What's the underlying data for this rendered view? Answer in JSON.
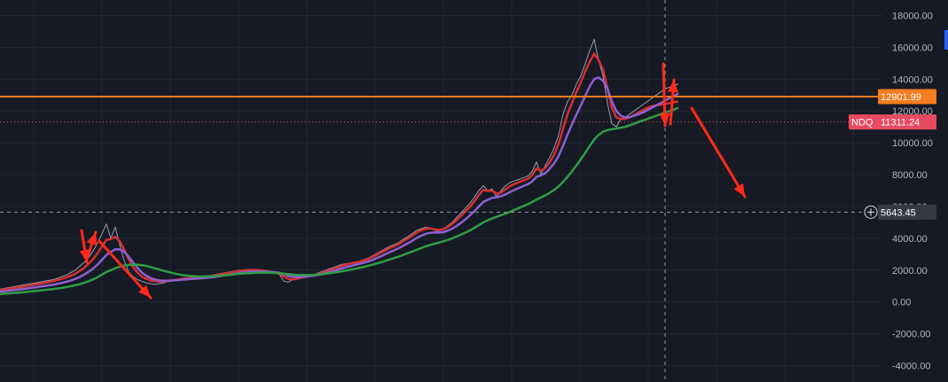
{
  "chart_data": {
    "type": "line",
    "title": "",
    "xlabel": "",
    "ylabel": "",
    "symbol": "NDQ",
    "ylim": [
      -4500,
      18800
    ],
    "x": [
      0,
      5,
      10,
      15,
      20,
      25,
      30,
      35,
      40,
      45,
      50,
      55,
      60,
      65,
      70,
      75,
      80,
      85,
      90,
      95,
      100,
      105,
      110,
      115,
      120,
      125,
      130,
      135,
      140,
      145,
      150,
      155,
      160,
      165,
      170,
      175,
      180,
      185,
      190,
      195,
      200,
      205,
      210,
      215,
      220,
      225,
      230,
      235,
      240,
      245,
      250,
      255,
      260,
      265,
      270,
      275,
      280,
      285,
      290,
      295,
      300,
      305,
      310,
      315,
      320,
      325,
      330,
      335,
      340,
      345,
      350,
      355,
      360,
      365,
      370,
      375,
      380,
      385,
      390,
      395,
      400,
      405,
      410,
      415,
      420,
      425,
      430,
      435,
      440,
      445,
      450,
      455,
      460,
      465,
      470,
      475,
      480,
      485,
      490,
      495,
      500,
      505,
      510,
      515,
      520,
      525,
      530,
      535,
      540,
      545,
      550,
      555,
      560,
      565,
      570,
      575,
      580,
      585,
      590,
      595,
      600,
      605,
      610,
      615,
      620,
      625,
      630,
      635,
      640,
      645,
      650,
      655,
      660,
      665,
      670,
      675,
      680,
      685,
      690,
      695,
      700,
      705,
      710,
      715,
      720,
      725,
      730,
      735,
      740,
      745,
      750,
      755,
      760,
      765
    ],
    "series": [
      {
        "color": "#b2b5be",
        "values": [
          800,
          850,
          900,
          950,
          1000,
          1050,
          1100,
          1150,
          1200,
          1250,
          1300,
          1350,
          1400,
          1500,
          1600,
          1700,
          1850,
          2000,
          2250,
          2500,
          2800,
          3200,
          3700,
          4300,
          4900,
          4000,
          4700,
          3600,
          2600,
          1900,
          1600,
          1400,
          1300,
          1200,
          1150,
          1100,
          1150,
          1200,
          1300,
          1350,
          1400,
          1450,
          1500,
          1500,
          1550,
          1550,
          1600,
          1650,
          1700,
          1750,
          1800,
          1850,
          1900,
          1950,
          2000,
          2000,
          2050,
          2050,
          2000,
          1950,
          1900,
          1850,
          1800,
          1750,
          1300,
          1250,
          1400,
          1500,
          1600,
          1650,
          1700,
          1750,
          1850,
          1950,
          2050,
          2150,
          2250,
          2350,
          2400,
          2450,
          2500,
          2550,
          2650,
          2750,
          2900,
          3050,
          3200,
          3350,
          3500,
          3600,
          3750,
          3950,
          4100,
          4300,
          4500,
          4600,
          4700,
          4650,
          4500,
          4450,
          4600,
          4800,
          5000,
          5300,
          5600,
          5900,
          6200,
          6600,
          7000,
          7300,
          7000,
          7100,
          6600,
          7000,
          7300,
          7500,
          7600,
          7700,
          7800,
          7900,
          8200,
          8800,
          8000,
          8600,
          9100,
          9700,
          10500,
          11800,
          12600,
          13000,
          13700,
          14200,
          15000,
          15800,
          16500,
          15200,
          14200,
          12500,
          11200,
          11000,
          11500,
          11600,
          11800,
          12000,
          12200,
          12400,
          12600,
          12800,
          13000,
          13200,
          13400,
          13500,
          13600,
          13700
        ]
      },
      {
        "color": "#d63031",
        "values": [
          750,
          790,
          830,
          870,
          910,
          950,
          1000,
          1050,
          1100,
          1150,
          1200,
          1250,
          1300,
          1380,
          1460,
          1550,
          1650,
          1780,
          1950,
          2150,
          2400,
          2700,
          3050,
          3500,
          3900,
          3950,
          4100,
          3800,
          3300,
          2700,
          2200,
          1850,
          1600,
          1450,
          1350,
          1300,
          1280,
          1290,
          1320,
          1360,
          1400,
          1440,
          1480,
          1500,
          1520,
          1540,
          1570,
          1610,
          1650,
          1700,
          1750,
          1800,
          1850,
          1900,
          1950,
          1980,
          2000,
          2010,
          2000,
          1980,
          1950,
          1900,
          1850,
          1800,
          1600,
          1450,
          1420,
          1460,
          1530,
          1590,
          1650,
          1700,
          1780,
          1870,
          1960,
          2060,
          2160,
          2260,
          2340,
          2410,
          2470,
          2530,
          2610,
          2700,
          2830,
          2970,
          3110,
          3260,
          3400,
          3520,
          3660,
          3840,
          4000,
          4180,
          4370,
          4500,
          4600,
          4620,
          4560,
          4520,
          4570,
          4720,
          4900,
          5150,
          5420,
          5700,
          5980,
          6330,
          6720,
          7040,
          6980,
          6990,
          6800,
          6880,
          7080,
          7280,
          7400,
          7520,
          7630,
          7730,
          7950,
          8400,
          8250,
          8420,
          8790,
          9280,
          9950,
          10900,
          11800,
          12500,
          13200,
          13800,
          14500,
          15100,
          15600,
          15200,
          14600,
          13400,
          12200,
          11600,
          11500,
          11500,
          11600,
          11750,
          11900,
          12050,
          12200,
          12300,
          12350,
          12400,
          12450,
          12500,
          12550,
          12600
        ]
      },
      {
        "color": "#8e5fd1",
        "values": [
          650,
          680,
          710,
          740,
          770,
          800,
          840,
          880,
          920,
          960,
          1000,
          1040,
          1080,
          1140,
          1200,
          1270,
          1350,
          1450,
          1570,
          1720,
          1900,
          2100,
          2350,
          2650,
          2950,
          3150,
          3300,
          3300,
          3150,
          2850,
          2500,
          2150,
          1850,
          1650,
          1500,
          1400,
          1350,
          1330,
          1330,
          1350,
          1370,
          1400,
          1420,
          1440,
          1460,
          1480,
          1500,
          1530,
          1560,
          1600,
          1640,
          1680,
          1720,
          1770,
          1820,
          1860,
          1890,
          1910,
          1920,
          1920,
          1910,
          1890,
          1860,
          1830,
          1760,
          1650,
          1580,
          1560,
          1570,
          1590,
          1620,
          1660,
          1710,
          1780,
          1850,
          1930,
          2010,
          2100,
          2180,
          2250,
          2320,
          2390,
          2460,
          2540,
          2640,
          2760,
          2880,
          3010,
          3140,
          3260,
          3390,
          3540,
          3690,
          3850,
          4020,
          4160,
          4280,
          4340,
          4360,
          4360,
          4390,
          4480,
          4600,
          4780,
          4980,
          5200,
          5440,
          5710,
          6000,
          6280,
          6420,
          6540,
          6580,
          6640,
          6760,
          6900,
          7040,
          7160,
          7280,
          7390,
          7560,
          7860,
          7950,
          8100,
          8380,
          8720,
          9180,
          9830,
          10520,
          11160,
          11780,
          12350,
          12950,
          13550,
          14000,
          14100,
          13900,
          13400,
          12600,
          12000,
          11700,
          11600,
          11620,
          11700,
          11800,
          11900,
          12050,
          12200,
          12350,
          12500,
          12650,
          12800,
          12950,
          13100
        ]
      },
      {
        "color": "#2e9e44",
        "values": [
          500,
          520,
          540,
          560,
          580,
          600,
          630,
          660,
          690,
          720,
          750,
          780,
          810,
          850,
          890,
          940,
          990,
          1050,
          1120,
          1200,
          1300,
          1420,
          1560,
          1720,
          1880,
          2000,
          2120,
          2220,
          2290,
          2330,
          2350,
          2340,
          2310,
          2260,
          2190,
          2110,
          2030,
          1950,
          1880,
          1810,
          1750,
          1700,
          1660,
          1630,
          1610,
          1600,
          1600,
          1610,
          1620,
          1640,
          1660,
          1680,
          1710,
          1740,
          1770,
          1790,
          1810,
          1820,
          1830,
          1840,
          1840,
          1830,
          1820,
          1800,
          1780,
          1750,
          1720,
          1700,
          1690,
          1690,
          1700,
          1710,
          1730,
          1760,
          1790,
          1830,
          1870,
          1920,
          1970,
          2020,
          2080,
          2140,
          2200,
          2270,
          2340,
          2420,
          2500,
          2590,
          2680,
          2770,
          2860,
          2960,
          3060,
          3170,
          3280,
          3390,
          3490,
          3580,
          3660,
          3730,
          3810,
          3900,
          4000,
          4110,
          4230,
          4360,
          4500,
          4660,
          4830,
          5000,
          5130,
          5250,
          5350,
          5450,
          5550,
          5660,
          5780,
          5900,
          6020,
          6140,
          6270,
          6430,
          6570,
          6700,
          6860,
          7050,
          7270,
          7550,
          7870,
          8210,
          8580,
          8970,
          9380,
          9800,
          10200,
          10500,
          10700,
          10800,
          10850,
          10900,
          10950,
          11000,
          11100,
          11200,
          11311.24,
          11400,
          11500,
          11600,
          11700,
          11800,
          11900,
          12000,
          12100,
          12200
        ]
      }
    ],
    "yticks": [
      18000,
      16000,
      14000,
      12000,
      10000,
      8000,
      6000,
      4000,
      2000,
      0,
      -2000,
      -4000
    ],
    "ytick_labels": [
      "18000.00",
      "16000.00",
      "14000.00",
      "12000.00",
      "10000.00",
      "8000.00",
      "6000.00",
      "4000.00",
      "2000.00",
      "0.00",
      "-2000.00",
      "-4000.00"
    ],
    "horizontal_line": {
      "value": 12901.99,
      "label": "12901.99",
      "color": "#f57c1f"
    },
    "last_price": {
      "value": 11311.24,
      "label": "11311.24",
      "symbol": "NDQ",
      "color": "#e84a5f"
    },
    "crosshair": {
      "value": 5643.45,
      "label": "5643.45",
      "x": 750
    },
    "arrow_color": "#ff2a1a",
    "grid": true
  }
}
